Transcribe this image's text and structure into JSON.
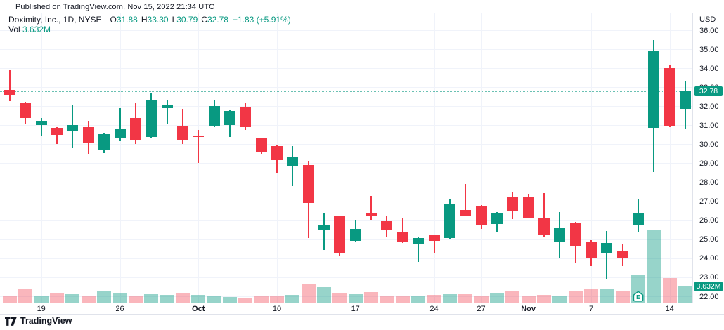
{
  "published": "Published on TradingView.com, Nov 15, 2022 21:34 UTC",
  "legend": {
    "symbol": "Doximity, Inc., 1D, NYSE",
    "ohlc": [
      {
        "k": "O",
        "v": "31.88"
      },
      {
        "k": "H",
        "v": "33.30"
      },
      {
        "k": "L",
        "v": "30.79"
      },
      {
        "k": "C",
        "v": "32.78"
      }
    ],
    "change": "+1.83 (+5.91%)",
    "vol_label": "Vol",
    "vol_value": "3.632M"
  },
  "price_axis": {
    "currency": "USD",
    "ticks": [
      "36.00",
      "35.00",
      "34.00",
      "33.00",
      "32.00",
      "31.00",
      "30.00",
      "29.00",
      "28.00",
      "27.00",
      "26.00",
      "25.00",
      "24.00",
      "23.00",
      "22.00"
    ],
    "price_label": "32.78",
    "volume_label": "3.632M"
  },
  "time_axis": {
    "ticks": [
      {
        "label": "19",
        "i": 2
      },
      {
        "label": "26",
        "i": 7
      },
      {
        "label": "Oct",
        "i": 12,
        "bold": true
      },
      {
        "label": "10",
        "i": 17
      },
      {
        "label": "17",
        "i": 22
      },
      {
        "label": "24",
        "i": 27
      },
      {
        "label": "27",
        "i": 30
      },
      {
        "label": "Nov",
        "i": 33,
        "bold": true
      },
      {
        "label": "7",
        "i": 37
      },
      {
        "label": "14",
        "i": 42
      }
    ]
  },
  "price_line": {
    "price": 32.78
  },
  "earnings_marker": {
    "label": "E",
    "i": 40
  },
  "footer": {
    "brand": "TradingView"
  },
  "colors": {
    "up": "#089981",
    "down": "#F23645",
    "vol_up": "rgba(8,153,129,0.42)",
    "vol_down": "rgba(242,54,69,0.36)",
    "grid": "#F0F3FA",
    "text": "#131722",
    "axis_border": "#E0E3EB",
    "label_bg": "#089981"
  },
  "chart_data": {
    "type": "candlestick",
    "title": "Doximity, Inc., 1D, NYSE",
    "symbol": "Doximity, Inc.",
    "interval": "1D",
    "exchange": "NYSE",
    "currency": "USD",
    "y_range": [
      22,
      36
    ],
    "grid": true,
    "last": {
      "o": 31.88,
      "h": 33.3,
      "l": 30.79,
      "c": 32.78,
      "change": "+1.83 (+5.91%)",
      "volume": "3.632M"
    },
    "volume_unit": "M",
    "candles": [
      {
        "d": "Sep 15",
        "o": 32.85,
        "h": 33.9,
        "l": 32.25,
        "c": 32.6,
        "v": 1.72,
        "vc": "down"
      },
      {
        "d": "Sep 16",
        "o": 32.2,
        "h": 32.25,
        "l": 31.1,
        "c": 31.4,
        "v": 3.28,
        "vc": "down"
      },
      {
        "d": "Sep 19",
        "o": 31.0,
        "h": 31.4,
        "l": 30.45,
        "c": 31.2,
        "v": 1.61,
        "vc": "up"
      },
      {
        "d": "Sep 20",
        "o": 30.85,
        "h": 30.9,
        "l": 30.0,
        "c": 30.5,
        "v": 2.34,
        "vc": "down"
      },
      {
        "d": "Sep 21",
        "o": 30.7,
        "h": 32.1,
        "l": 29.8,
        "c": 31.0,
        "v": 1.98,
        "vc": "up"
      },
      {
        "d": "Sep 22",
        "o": 30.9,
        "h": 31.25,
        "l": 29.45,
        "c": 30.1,
        "v": 1.61,
        "vc": "down"
      },
      {
        "d": "Sep 23",
        "o": 29.7,
        "h": 30.6,
        "l": 29.55,
        "c": 30.55,
        "v": 2.6,
        "vc": "up"
      },
      {
        "d": "Sep 26",
        "o": 30.3,
        "h": 31.9,
        "l": 30.15,
        "c": 30.8,
        "v": 2.23,
        "vc": "up"
      },
      {
        "d": "Sep 27",
        "o": 31.4,
        "h": 32.15,
        "l": 30.0,
        "c": 30.2,
        "v": 1.45,
        "vc": "down"
      },
      {
        "d": "Sep 28",
        "o": 30.4,
        "h": 32.7,
        "l": 30.3,
        "c": 32.35,
        "v": 1.98,
        "vc": "up"
      },
      {
        "d": "Sep 29",
        "o": 31.9,
        "h": 32.3,
        "l": 31.05,
        "c": 32.05,
        "v": 1.82,
        "vc": "up"
      },
      {
        "d": "Sep 30",
        "o": 30.95,
        "h": 31.85,
        "l": 30.0,
        "c": 30.2,
        "v": 2.23,
        "vc": "down"
      },
      {
        "d": "Oct 3",
        "o": 30.45,
        "h": 30.75,
        "l": 29.0,
        "c": 30.4,
        "v": 1.82,
        "vc": "up"
      },
      {
        "d": "Oct 4",
        "o": 30.95,
        "h": 32.3,
        "l": 30.9,
        "c": 32.0,
        "v": 1.61,
        "vc": "up"
      },
      {
        "d": "Oct 5",
        "o": 31.0,
        "h": 31.8,
        "l": 30.4,
        "c": 31.75,
        "v": 1.36,
        "vc": "up"
      },
      {
        "d": "Oct 6",
        "o": 31.95,
        "h": 32.2,
        "l": 30.75,
        "c": 30.9,
        "v": 1.2,
        "vc": "down"
      },
      {
        "d": "Oct 7",
        "o": 30.3,
        "h": 30.35,
        "l": 29.5,
        "c": 29.6,
        "v": 1.45,
        "vc": "down"
      },
      {
        "d": "Oct 10",
        "o": 29.9,
        "h": 29.95,
        "l": 28.45,
        "c": 29.15,
        "v": 1.45,
        "vc": "down"
      },
      {
        "d": "Oct 11",
        "o": 28.85,
        "h": 29.9,
        "l": 27.8,
        "c": 29.35,
        "v": 1.82,
        "vc": "up"
      },
      {
        "d": "Oct 12",
        "o": 28.9,
        "h": 29.1,
        "l": 25.05,
        "c": 26.9,
        "v": 4.32,
        "vc": "down"
      },
      {
        "d": "Oct 13",
        "o": 25.5,
        "h": 26.4,
        "l": 24.45,
        "c": 25.75,
        "v": 3.54,
        "vc": "up"
      },
      {
        "d": "Oct 14",
        "o": 26.2,
        "h": 26.25,
        "l": 24.15,
        "c": 24.3,
        "v": 2.34,
        "vc": "down"
      },
      {
        "d": "Oct 17",
        "o": 24.9,
        "h": 26.0,
        "l": 24.85,
        "c": 25.55,
        "v": 1.98,
        "vc": "up"
      },
      {
        "d": "Oct 18",
        "o": 26.35,
        "h": 27.3,
        "l": 26.0,
        "c": 26.25,
        "v": 2.5,
        "vc": "down"
      },
      {
        "d": "Oct 19",
        "o": 25.95,
        "h": 26.25,
        "l": 25.15,
        "c": 25.5,
        "v": 1.72,
        "vc": "down"
      },
      {
        "d": "Oct 20",
        "o": 25.4,
        "h": 26.1,
        "l": 24.8,
        "c": 24.9,
        "v": 1.45,
        "vc": "down"
      },
      {
        "d": "Oct 21",
        "o": 24.75,
        "h": 25.1,
        "l": 23.8,
        "c": 25.05,
        "v": 1.61,
        "vc": "up"
      },
      {
        "d": "Oct 24",
        "o": 25.2,
        "h": 25.25,
        "l": 24.3,
        "c": 24.9,
        "v": 1.82,
        "vc": "down"
      },
      {
        "d": "Oct 25",
        "o": 25.05,
        "h": 27.1,
        "l": 25.0,
        "c": 26.85,
        "v": 1.98,
        "vc": "up"
      },
      {
        "d": "Oct 26",
        "o": 26.55,
        "h": 27.9,
        "l": 26.2,
        "c": 26.25,
        "v": 1.98,
        "vc": "down"
      },
      {
        "d": "Oct 27",
        "o": 26.75,
        "h": 26.8,
        "l": 25.55,
        "c": 25.75,
        "v": 1.56,
        "vc": "down"
      },
      {
        "d": "Oct 28",
        "o": 25.8,
        "h": 26.45,
        "l": 25.4,
        "c": 26.4,
        "v": 2.23,
        "vc": "up"
      },
      {
        "d": "Oct 31",
        "o": 27.2,
        "h": 27.5,
        "l": 26.05,
        "c": 26.5,
        "v": 2.76,
        "vc": "down"
      },
      {
        "d": "Nov 1",
        "o": 27.2,
        "h": 27.4,
        "l": 26.1,
        "c": 26.15,
        "v": 1.56,
        "vc": "down"
      },
      {
        "d": "Nov 2",
        "o": 26.15,
        "h": 27.45,
        "l": 25.15,
        "c": 25.25,
        "v": 1.87,
        "vc": "down"
      },
      {
        "d": "Nov 3",
        "o": 24.85,
        "h": 26.45,
        "l": 24.05,
        "c": 25.6,
        "v": 1.72,
        "vc": "up"
      },
      {
        "d": "Nov 4",
        "o": 25.85,
        "h": 25.9,
        "l": 23.75,
        "c": 24.65,
        "v": 2.6,
        "vc": "down"
      },
      {
        "d": "Nov 7",
        "o": 24.9,
        "h": 24.95,
        "l": 23.6,
        "c": 24.05,
        "v": 3.01,
        "vc": "down"
      },
      {
        "d": "Nov 8",
        "o": 24.3,
        "h": 25.45,
        "l": 22.9,
        "c": 24.8,
        "v": 3.28,
        "vc": "up"
      },
      {
        "d": "Nov 9",
        "o": 24.4,
        "h": 24.75,
        "l": 23.6,
        "c": 24.0,
        "v": 2.6,
        "vc": "down"
      },
      {
        "d": "Nov 10",
        "o": 25.75,
        "h": 27.1,
        "l": 25.4,
        "c": 26.4,
        "v": 6.24,
        "vc": "up"
      },
      {
        "d": "Nov 11",
        "o": 30.85,
        "h": 35.5,
        "l": 28.55,
        "c": 34.9,
        "v": 16.27,
        "vc": "up"
      },
      {
        "d": "Nov 14",
        "o": 34.0,
        "h": 34.15,
        "l": 30.9,
        "c": 30.95,
        "v": 5.51,
        "vc": "down"
      },
      {
        "d": "Nov 15",
        "o": 31.88,
        "h": 33.3,
        "l": 30.79,
        "c": 32.78,
        "v": 3.63,
        "vc": "up"
      }
    ]
  }
}
